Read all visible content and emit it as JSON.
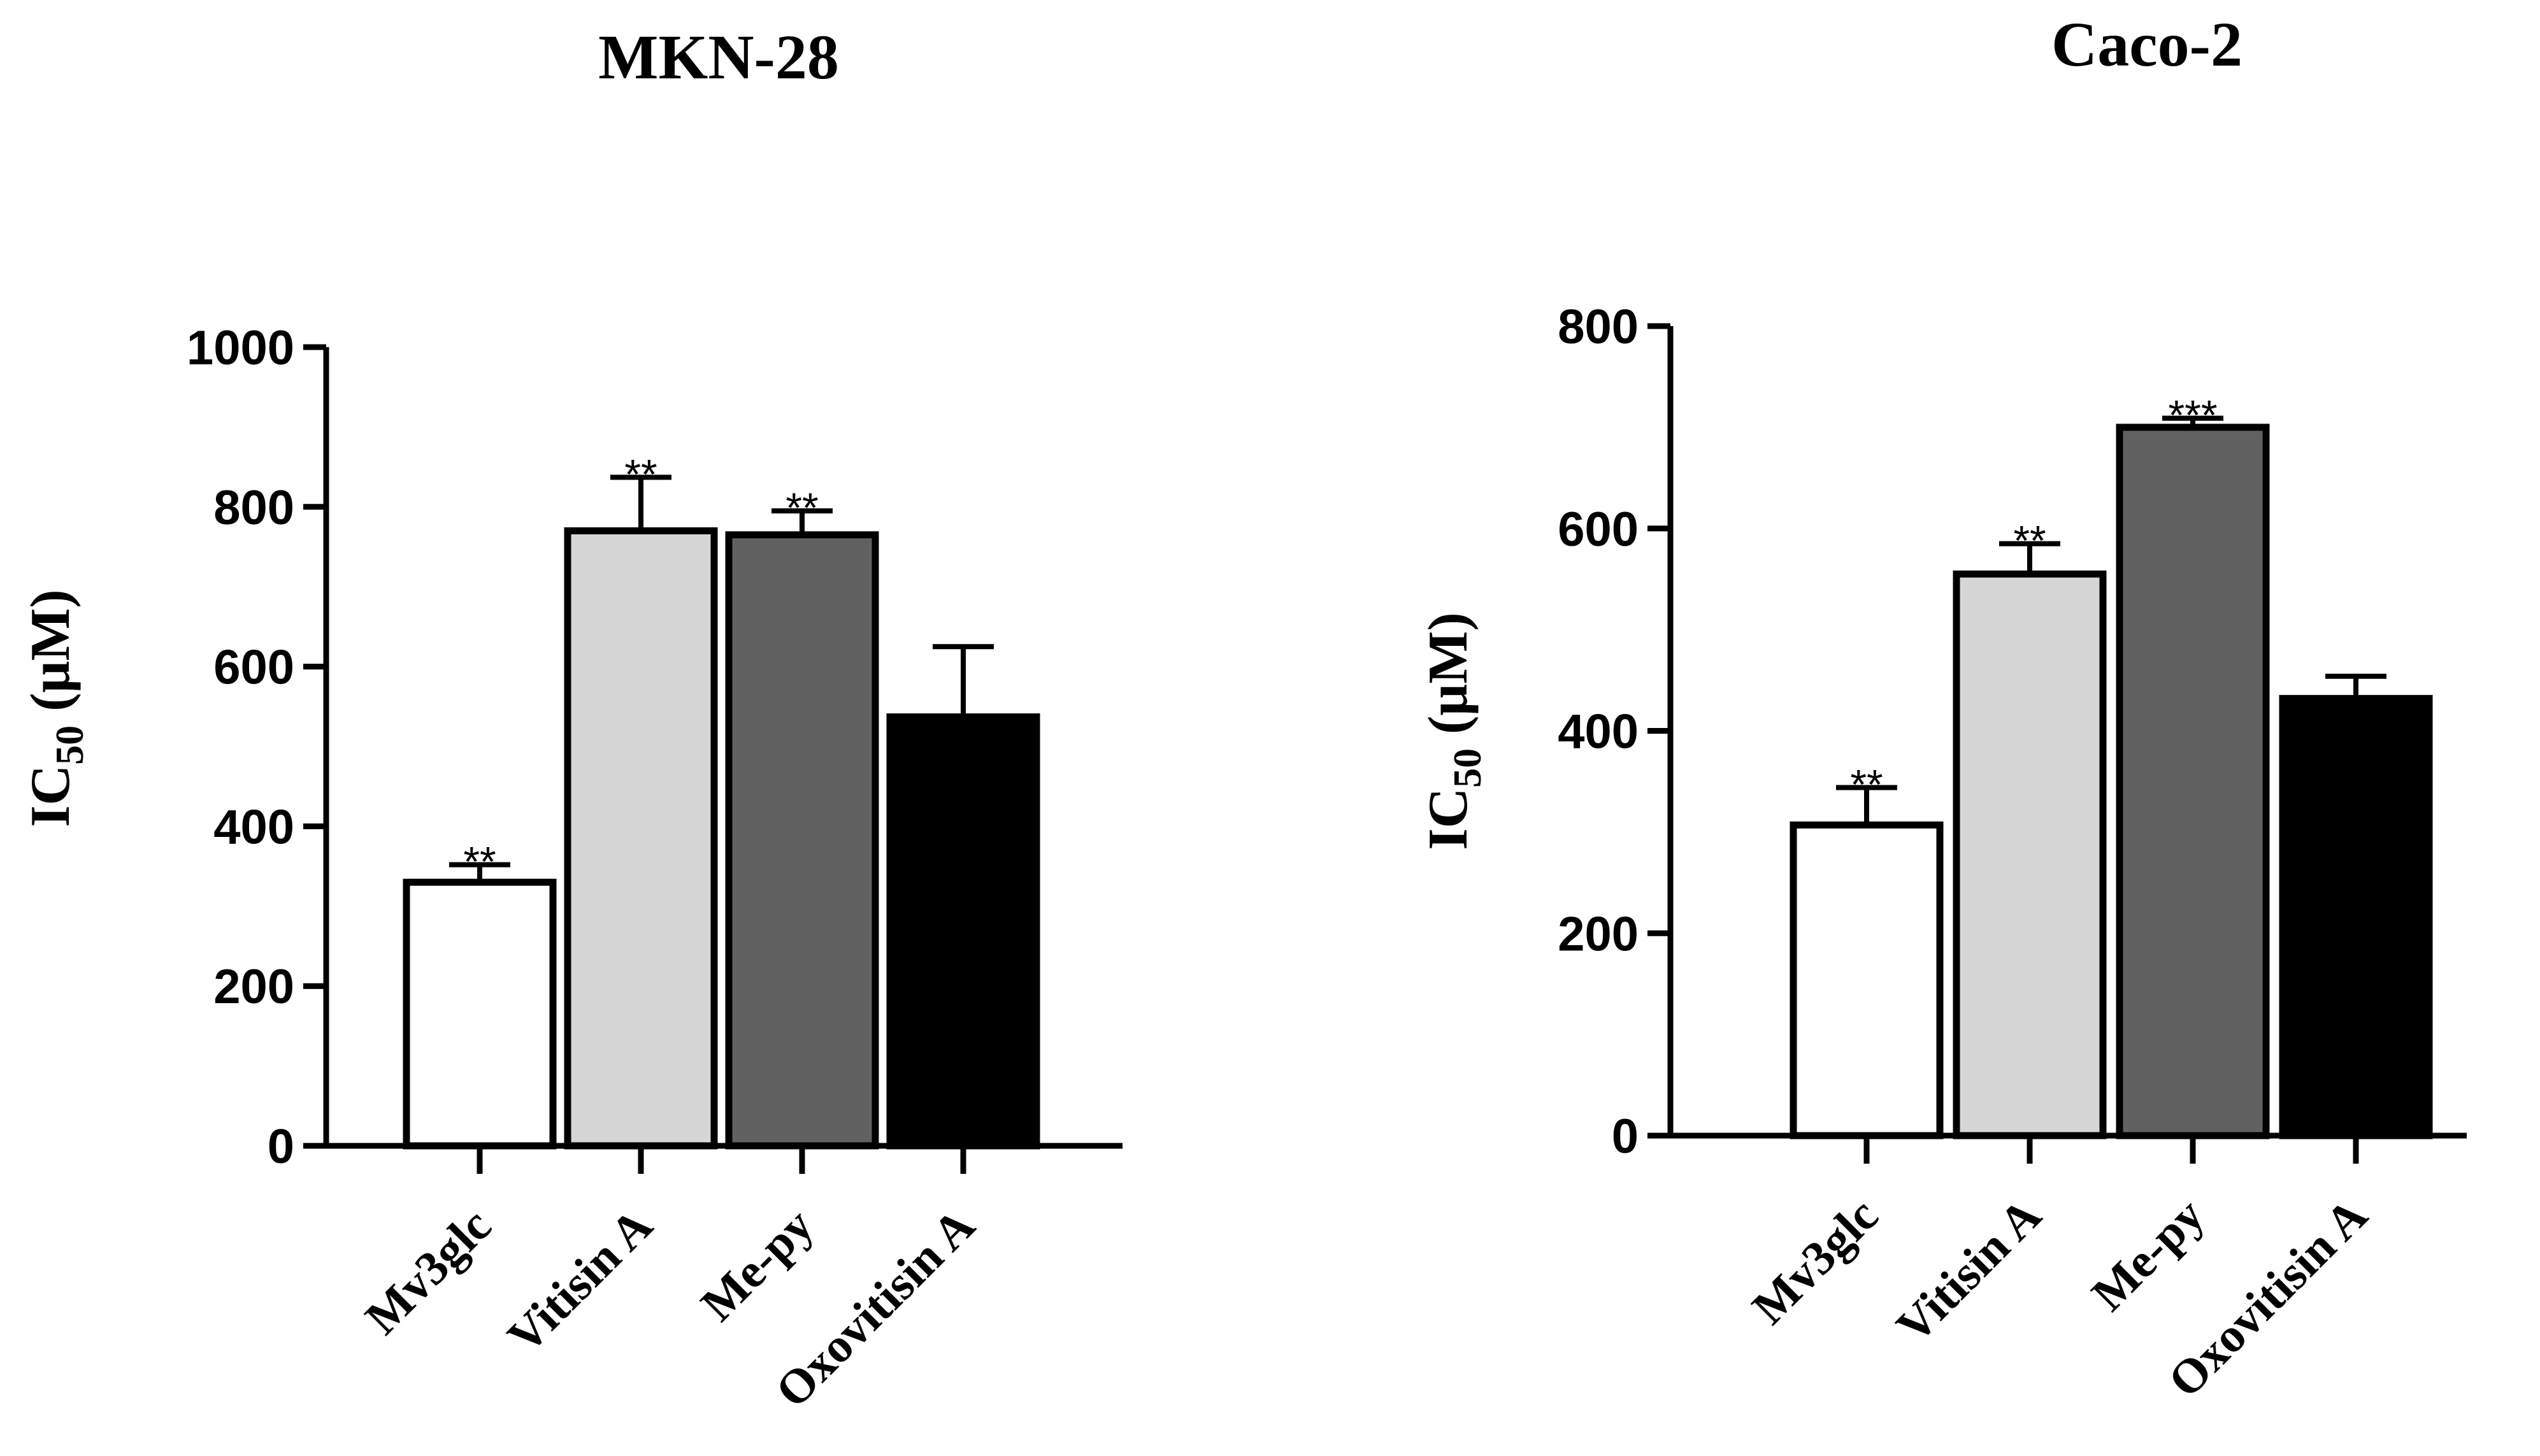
{
  "chart_data": [
    {
      "type": "bar",
      "title": "MKN-28",
      "ylabel": "IC50 (μM)",
      "ylabel_main": "IC",
      "ylabel_sub": "50",
      "ylabel_unit": " (μM)",
      "xlabel": "",
      "ylim": [
        0,
        1000
      ],
      "yticks": [
        0,
        200,
        400,
        600,
        800,
        1000
      ],
      "categories": [
        "Mv3glc",
        "Vitisin A",
        "Me-py",
        "Oxovitisin A"
      ],
      "values": [
        330,
        770,
        765,
        537
      ],
      "errors": [
        22,
        67,
        30,
        88
      ],
      "significance": [
        "**",
        "**",
        "**",
        ""
      ],
      "colors": [
        "#ffffff",
        "#d6d6d6",
        "#616161",
        "#000000"
      ],
      "grid": false
    },
    {
      "type": "bar",
      "title": "Caco-2",
      "ylabel": "IC50 (μM)",
      "ylabel_main": "IC",
      "ylabel_sub": "50",
      "ylabel_unit": " (μM)",
      "xlabel": "",
      "ylim": [
        0,
        800
      ],
      "yticks": [
        0,
        200,
        400,
        600,
        800
      ],
      "categories": [
        "Mv3glc",
        "Vitisin A",
        "Me-py",
        "Oxovitisin A"
      ],
      "values": [
        307,
        555,
        700,
        432
      ],
      "errors": [
        37,
        30,
        9,
        22
      ],
      "significance": [
        "**",
        "**",
        "***",
        ""
      ],
      "colors": [
        "#ffffff",
        "#d6d6d6",
        "#616161",
        "#000000"
      ],
      "grid": false
    }
  ]
}
